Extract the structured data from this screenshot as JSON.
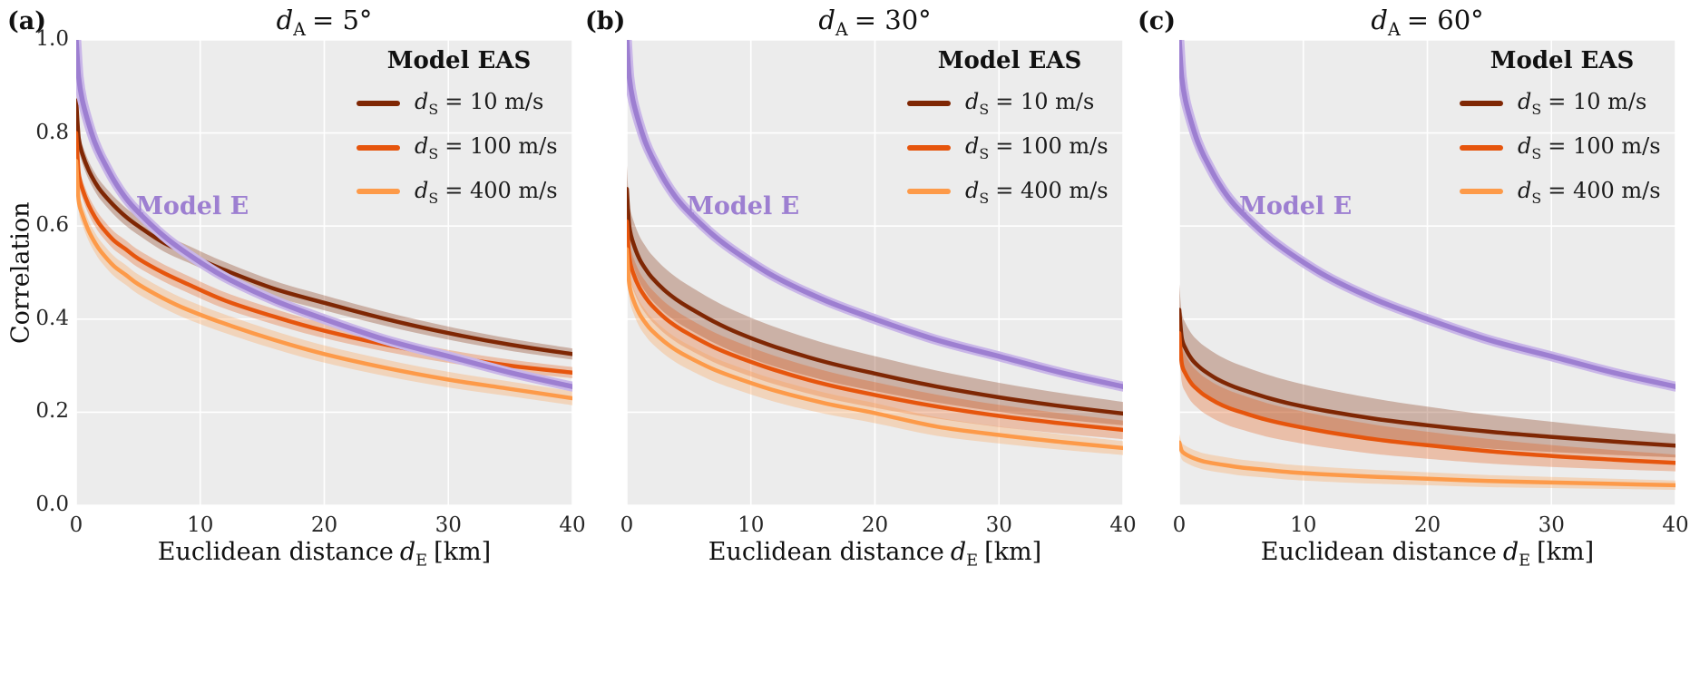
{
  "colors": {
    "background": "#ffffff",
    "plot_background": "#ececec",
    "grid": "#ffffff",
    "model_e": "#9d7fd1",
    "model_e_halo": "#c9b6e8",
    "eas_10": "#7f2704",
    "eas_100": "#e6550d",
    "eas_400": "#fd9a49"
  },
  "legend": {
    "title": "Model EAS",
    "sym": "d",
    "sub": "S",
    "items": [
      {
        "rest": "= 10 m/s",
        "color": "#7f2704"
      },
      {
        "rest": "= 100 m/s",
        "color": "#e6550d"
      },
      {
        "rest": "= 400 m/s",
        "color": "#fd9a49"
      }
    ]
  },
  "annotation": {
    "model_e": "Model E"
  },
  "axis": {
    "ylabel": "Correlation",
    "xlabel_pre": "Euclidean distance",
    "xlabel_sym": "d",
    "xlabel_sub": "E",
    "xlabel_post": "[km]"
  },
  "panels": [
    {
      "letter": "(a)",
      "title": {
        "sym": "d",
        "sub": "A",
        "rest": "= 5°"
      }
    },
    {
      "letter": "(b)",
      "title": {
        "sym": "d",
        "sub": "A",
        "rest": "= 30°"
      }
    },
    {
      "letter": "(c)",
      "title": {
        "sym": "d",
        "sub": "A",
        "rest": "= 60°"
      }
    }
  ],
  "chart_data": {
    "type": "line",
    "x": [
      0,
      0.2,
      0.5,
      1,
      1.5,
      2,
      3,
      4,
      5,
      7,
      9,
      12,
      16,
      20,
      25,
      30,
      35,
      40
    ],
    "xlim": [
      0,
      40
    ],
    "ylim": [
      0,
      1
    ],
    "x_ticks": [
      0,
      10,
      20,
      30,
      40
    ],
    "x_tick_labels": [
      "0",
      "10",
      "20",
      "30",
      "40"
    ],
    "y_ticks": [
      0,
      0.2,
      0.4,
      0.6,
      0.8,
      1.0
    ],
    "y_tick_labels": [
      "0.0",
      "0.2",
      "0.4",
      "0.6",
      "0.8",
      "1.0"
    ],
    "xlabel": "Euclidean distance dE [km]",
    "ylabel": "Correlation",
    "legend_position": "upper right",
    "grid": true,
    "panels": [
      {
        "title": "dA = 5°",
        "series": [
          {
            "name": "Model EAS dS = 10 m/s",
            "color": "#7f2704",
            "band": [
              0.02,
              0.012
            ],
            "values": [
              0.87,
              0.79,
              0.755,
              0.72,
              0.695,
              0.675,
              0.645,
              0.62,
              0.6,
              0.565,
              0.54,
              0.505,
              0.465,
              0.435,
              0.4,
              0.37,
              0.345,
              0.325
            ]
          },
          {
            "name": "Model EAS dS = 100 m/s",
            "color": "#e6550d",
            "band": [
              0.02,
              0.012
            ],
            "values": [
              0.8,
              0.715,
              0.68,
              0.645,
              0.62,
              0.6,
              0.57,
              0.55,
              0.53,
              0.5,
              0.475,
              0.44,
              0.405,
              0.375,
              0.345,
              0.32,
              0.3,
              0.285
            ]
          },
          {
            "name": "Model EAS dS = 400 m/s",
            "color": "#fd9a49",
            "band": [
              0.022,
              0.015
            ],
            "values": [
              0.74,
              0.655,
              0.625,
              0.59,
              0.565,
              0.545,
              0.515,
              0.495,
              0.475,
              0.445,
              0.42,
              0.39,
              0.355,
              0.325,
              0.295,
              0.27,
              0.25,
              0.23
            ]
          },
          {
            "name": "Model E",
            "color": "#9d7fd1",
            "halo": "#c9b6e8",
            "values": [
              1.0,
              0.92,
              0.87,
              0.82,
              0.78,
              0.75,
              0.7,
              0.66,
              0.63,
              0.58,
              0.54,
              0.49,
              0.44,
              0.4,
              0.355,
              0.32,
              0.285,
              0.255
            ]
          }
        ]
      },
      {
        "title": "dA = 30°",
        "series": [
          {
            "name": "Model EAS dS = 10 m/s",
            "color": "#7f2704",
            "band": [
              0.05,
              0.025
            ],
            "values": [
              0.68,
              0.6,
              0.565,
              0.53,
              0.508,
              0.49,
              0.463,
              0.442,
              0.425,
              0.395,
              0.37,
              0.34,
              0.308,
              0.283,
              0.255,
              0.232,
              0.213,
              0.197
            ]
          },
          {
            "name": "Model EAS dS = 100 m/s",
            "color": "#e6550d",
            "band": [
              0.035,
              0.02
            ],
            "values": [
              0.61,
              0.533,
              0.5,
              0.468,
              0.447,
              0.43,
              0.404,
              0.384,
              0.368,
              0.34,
              0.318,
              0.29,
              0.26,
              0.237,
              0.212,
              0.192,
              0.176,
              0.162
            ]
          },
          {
            "name": "Model EAS dS = 400 m/s",
            "color": "#fd9a49",
            "band": [
              0.028,
              0.015
            ],
            "values": [
              0.55,
              0.475,
              0.443,
              0.412,
              0.392,
              0.376,
              0.352,
              0.333,
              0.318,
              0.292,
              0.272,
              0.246,
              0.219,
              0.198,
              0.169,
              0.151,
              0.136,
              0.123
            ]
          },
          {
            "name": "Model E",
            "color": "#9d7fd1",
            "halo": "#c9b6e8",
            "values": [
              1.0,
              0.92,
              0.87,
              0.82,
              0.78,
              0.75,
              0.7,
              0.66,
              0.63,
              0.58,
              0.54,
              0.49,
              0.44,
              0.4,
              0.355,
              0.32,
              0.285,
              0.255
            ]
          }
        ]
      },
      {
        "title": "dA = 60°",
        "series": [
          {
            "name": "Model EAS dS = 10 m/s",
            "color": "#7f2704",
            "band": [
              0.055,
              0.025
            ],
            "values": [
              0.42,
              0.36,
              0.337,
              0.314,
              0.3,
              0.289,
              0.272,
              0.259,
              0.249,
              0.232,
              0.218,
              0.202,
              0.185,
              0.172,
              0.158,
              0.147,
              0.137,
              0.128
            ]
          },
          {
            "name": "Model EAS dS = 100 m/s",
            "color": "#e6550d",
            "band": [
              0.04,
              0.018
            ],
            "values": [
              0.37,
              0.305,
              0.283,
              0.261,
              0.248,
              0.237,
              0.221,
              0.209,
              0.2,
              0.184,
              0.172,
              0.157,
              0.141,
              0.129,
              0.116,
              0.106,
              0.098,
              0.091
            ]
          },
          {
            "name": "Model EAS dS = 400 m/s",
            "color": "#fd9a49",
            "band": [
              0.018,
              0.01
            ],
            "values": [
              0.135,
              0.117,
              0.11,
              0.103,
              0.098,
              0.094,
              0.089,
              0.085,
              0.081,
              0.076,
              0.071,
              0.066,
              0.061,
              0.057,
              0.052,
              0.049,
              0.046,
              0.043
            ]
          },
          {
            "name": "Model E",
            "color": "#9d7fd1",
            "halo": "#c9b6e8",
            "values": [
              1.0,
              0.92,
              0.87,
              0.82,
              0.78,
              0.75,
              0.7,
              0.66,
              0.63,
              0.58,
              0.54,
              0.49,
              0.44,
              0.4,
              0.355,
              0.32,
              0.285,
              0.255
            ]
          }
        ]
      }
    ]
  }
}
